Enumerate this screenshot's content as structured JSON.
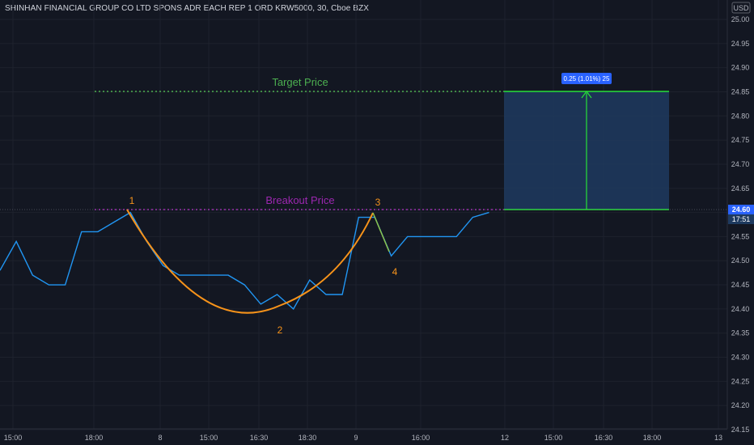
{
  "header": {
    "title": "SHINHAN FINANCIAL GROUP CO LTD SPONS ADR EACH REP 1 ORD KRW5000, 30, Cboe BZX",
    "currency": "USD"
  },
  "price_axis": {
    "labels": [
      "25.00",
      "24.95",
      "24.90",
      "24.85",
      "24.80",
      "24.75",
      "24.70",
      "24.65",
      "24.60",
      "24.55",
      "24.50",
      "24.45",
      "24.40",
      "24.35",
      "24.30",
      "24.25",
      "24.20",
      "24.15"
    ],
    "last_price": "24.60",
    "countdown": "17:51"
  },
  "time_axis": {
    "labels": [
      "15:00",
      "18:00",
      "8",
      "15:00",
      "16:30",
      "18:30",
      "9",
      "16:00",
      "12",
      "15:00",
      "16:30",
      "18:00",
      "13"
    ]
  },
  "annotations": {
    "target_label": "Target Price",
    "breakout_label": "Breakout Price",
    "measure_label": "0.25 (1.01%) 25",
    "point_labels": [
      "1",
      "2",
      "3",
      "4"
    ]
  },
  "colors": {
    "background": "#131722",
    "price_line": "#2196f3",
    "cup_curve": "#f7931a",
    "target": "#4caf50",
    "breakout": "#9c27b0",
    "measure_box": "#1e3a5f",
    "measure_border": "#26e038",
    "badge": "#2962ff"
  },
  "chart_data": {
    "type": "line",
    "title": "SHINHAN FINANCIAL GROUP CO LTD SPONS ADR EACH REP 1 ORD KRW5000, 30, Cboe BZX",
    "ylabel": "USD",
    "ylim": [
      24.14,
      25.02
    ],
    "x": [
      "15:00",
      "",
      "",
      "",
      "",
      "",
      "18:00",
      "",
      "",
      "",
      "",
      "8",
      "",
      "",
      "",
      "15:00",
      "",
      "16:30",
      "",
      "",
      "18:30",
      "",
      "",
      "9",
      "",
      "",
      "",
      "16:00",
      "",
      "",
      ""
    ],
    "series": [
      {
        "values": [
          24.48,
          24.54,
          24.47,
          24.45,
          24.45,
          24.56,
          24.56,
          24.58,
          24.6,
          24.54,
          24.49,
          24.47,
          24.47,
          24.47,
          24.47,
          24.45,
          24.41,
          24.43,
          24.4,
          24.46,
          24.43,
          24.43,
          24.59,
          24.59,
          24.51,
          24.55,
          24.55,
          24.55,
          24.55,
          24.59,
          24.6
        ]
      }
    ],
    "levels": {
      "breakout": 24.6,
      "target": 24.85
    },
    "measure": {
      "from": 24.6,
      "to": 24.85,
      "change": "0.25 (1.01%) 25"
    }
  }
}
